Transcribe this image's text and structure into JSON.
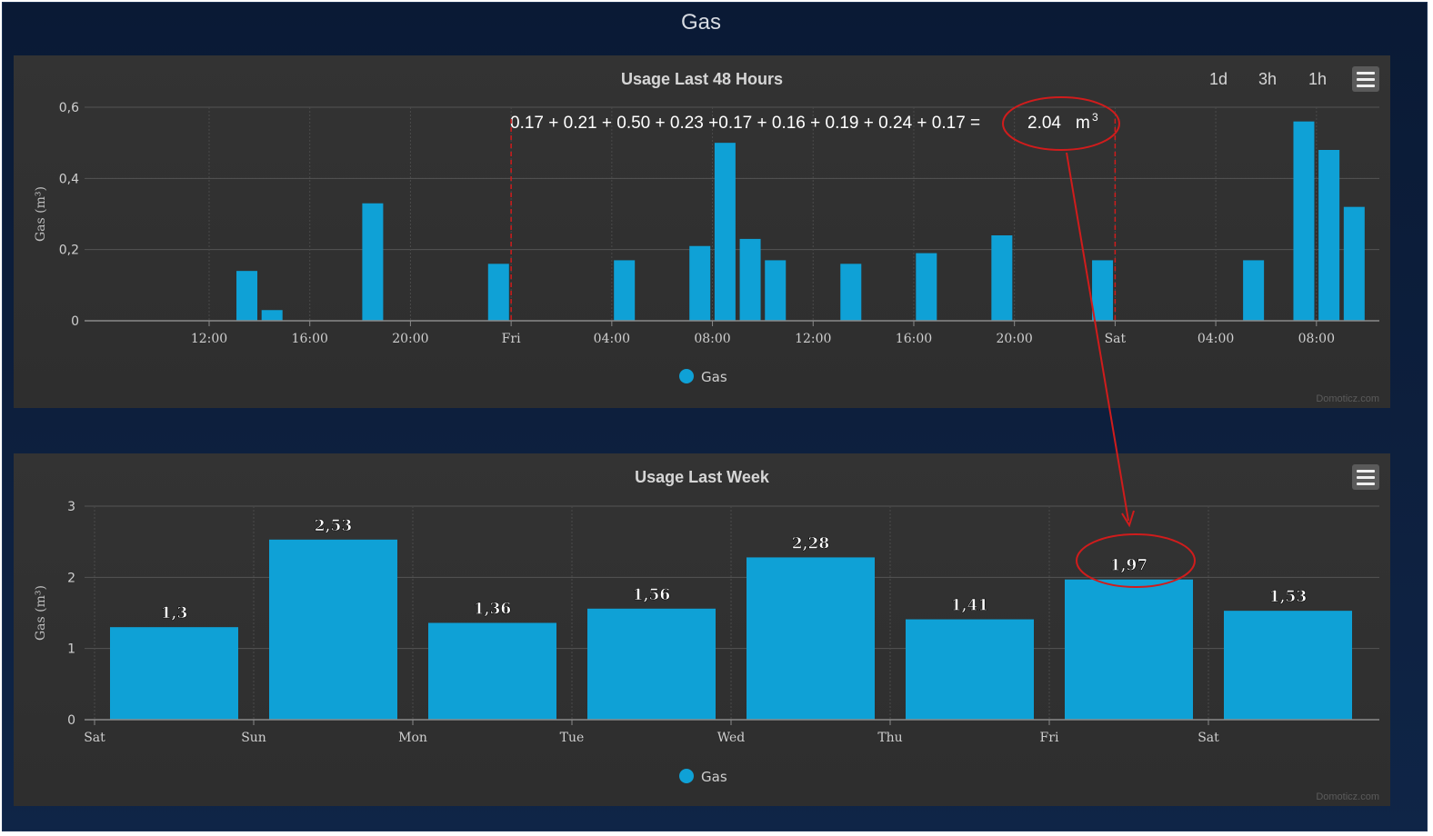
{
  "page": {
    "title": "Gas"
  },
  "colors": {
    "bar": "#0fa1d6",
    "annotation": "#d01c1c",
    "panel": "#303030",
    "grid": "#545454"
  },
  "charts": [
    {
      "title": "Usage Last 48 Hours",
      "range_buttons": [
        "1d",
        "3h",
        "1h"
      ],
      "credit": "Domoticz.com",
      "legend": "Gas",
      "ylabel": "Gas (m³)",
      "y_ticks": [
        "0",
        "0,2",
        "0,4",
        "0,6"
      ]
    },
    {
      "title": "Usage Last Week",
      "credit": "Domoticz.com",
      "legend": "Gas",
      "ylabel": "Gas (m³)",
      "y_ticks": [
        "0",
        "1",
        "2",
        "3"
      ]
    }
  ],
  "chart_data": [
    {
      "type": "bar",
      "title": "Usage Last 48 Hours",
      "xlabel": "",
      "ylabel": "Gas (m³)",
      "ylim": [
        0,
        0.6
      ],
      "y_ticks": [
        0,
        0.2,
        0.4,
        0.6
      ],
      "x_range_hours": [
        -17,
        30
      ],
      "x_ticks": [
        {
          "h": -12,
          "label": "12:00"
        },
        {
          "h": -8,
          "label": "16:00"
        },
        {
          "h": -4,
          "label": "20:00"
        },
        {
          "h": 0,
          "label": "Fri"
        },
        {
          "h": 4,
          "label": "04:00"
        },
        {
          "h": 8,
          "label": "08:00"
        },
        {
          "h": 12,
          "label": "12:00"
        },
        {
          "h": 16,
          "label": "16:00"
        },
        {
          "h": 20,
          "label": "20:00"
        },
        {
          "h": 24,
          "label": "Sat"
        },
        {
          "h": 28,
          "label": "04:00"
        },
        {
          "h": 32,
          "label": "08:00"
        }
      ],
      "grid": true,
      "legend": "bottom",
      "series": [
        {
          "name": "Gas",
          "points": [
            {
              "h": -10.5,
              "v": 0.14
            },
            {
              "h": -9.5,
              "v": 0.03
            },
            {
              "h": -5.5,
              "v": 0.33
            },
            {
              "h": -0.5,
              "v": 0.16
            },
            {
              "h": 4.5,
              "v": 0.17
            },
            {
              "h": 7.5,
              "v": 0.21
            },
            {
              "h": 8.5,
              "v": 0.5
            },
            {
              "h": 9.5,
              "v": 0.23
            },
            {
              "h": 10.5,
              "v": 0.17
            },
            {
              "h": 13.5,
              "v": 0.16
            },
            {
              "h": 16.5,
              "v": 0.19
            },
            {
              "h": 19.5,
              "v": 0.24
            },
            {
              "h": 23.5,
              "v": 0.17
            },
            {
              "h": 29.5,
              "v": 0.17
            },
            {
              "h": 31.5,
              "v": 0.56
            },
            {
              "h": 32.5,
              "v": 0.48
            },
            {
              "h": 33.5,
              "v": 0.32
            }
          ]
        }
      ],
      "annotation": {
        "formula": "0.17 + 0.21 + 0.50 + 0.23 +0.17 + 0.16 + 0.19 + 0.24 + 0.17 =",
        "total": "2.04",
        "unit": "m",
        "unit_sup": "3"
      }
    },
    {
      "type": "bar",
      "title": "Usage Last Week",
      "xlabel": "",
      "ylabel": "Gas (m³)",
      "ylim": [
        0,
        3
      ],
      "y_ticks": [
        0,
        1,
        2,
        3
      ],
      "grid": true,
      "legend": "bottom",
      "x_ticks": [
        "Sat",
        "Sun",
        "Mon",
        "Tue",
        "Wed",
        "Thu",
        "Fri",
        "Sat"
      ],
      "series": [
        {
          "name": "Gas",
          "values": [
            1.3,
            2.53,
            1.36,
            1.56,
            2.28,
            1.41,
            1.97,
            1.53
          ],
          "labels": [
            "1,3",
            "2,53",
            "1,36",
            "1,56",
            "2,28",
            "1,41",
            "1,97",
            "1,53"
          ]
        }
      ],
      "highlight_index": 6
    }
  ]
}
